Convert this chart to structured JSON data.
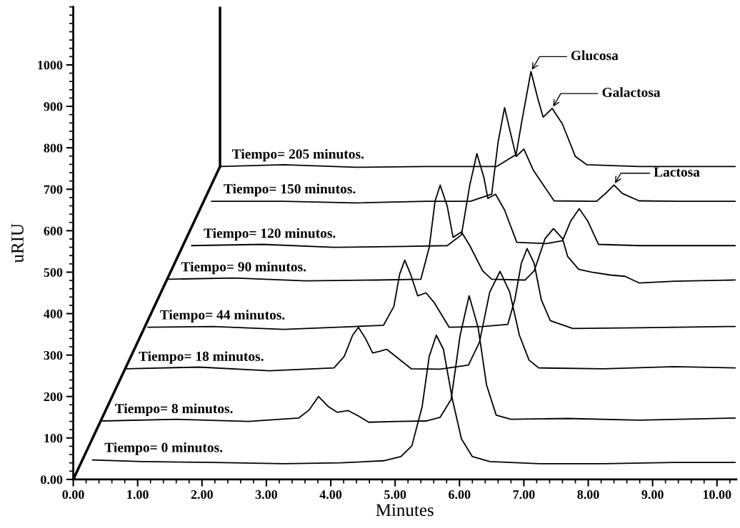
{
  "chart_data": {
    "type": "line",
    "xlabel": "Minutes",
    "ylabel": "uRIU",
    "xlim": [
      0,
      10.3
    ],
    "ylim": [
      0,
      1140
    ],
    "xticks": [
      {
        "value": 0,
        "label": "0.00"
      },
      {
        "value": 1,
        "label": "1.00"
      },
      {
        "value": 2,
        "label": "2.00"
      },
      {
        "value": 3,
        "label": "3.00"
      },
      {
        "value": 4,
        "label": "4.00"
      },
      {
        "value": 5,
        "label": "5.00"
      },
      {
        "value": 6,
        "label": "6.00"
      },
      {
        "value": 7,
        "label": "7.00"
      },
      {
        "value": 8,
        "label": "8.00"
      },
      {
        "value": 9,
        "label": "9.00"
      },
      {
        "value": 10,
        "label": "10.00"
      }
    ],
    "yticks": [
      {
        "value": 0,
        "label": "0.00"
      },
      100,
      200,
      300,
      400,
      500,
      600,
      700,
      800,
      900,
      1000
    ],
    "grid": false,
    "legend": false,
    "marker": "none",
    "line_style": "solid",
    "series": [
      {
        "name": "Tiempo= 0 minutos.",
        "color": "#000000",
        "x": [
          0.3,
          1.07,
          2.17,
          3.27,
          4.16,
          4.82,
          5.09,
          5.26,
          5.42,
          5.53,
          5.64,
          5.75,
          5.89,
          6.03,
          6.2,
          6.47,
          7.24,
          8.24,
          9.34,
          10.28
        ],
        "values": [
          47,
          43,
          41,
          38,
          40,
          45,
          55,
          81,
          176,
          297,
          348,
          314,
          193,
          98,
          55,
          43,
          38,
          38,
          41,
          41
        ]
      },
      {
        "name": "Tiempo= 8 minutos.",
        "color": "#000000",
        "x": [
          0.46,
          1.62,
          2.72,
          3.5,
          3.66,
          3.81,
          3.96,
          4.1,
          4.27,
          4.43,
          4.59,
          5.04,
          5.48,
          5.7,
          5.87,
          6.01,
          6.15,
          6.29,
          6.42,
          6.57,
          6.8,
          7.68,
          8.79,
          10.28
        ],
        "values": [
          141,
          145,
          140,
          148,
          167,
          200,
          176,
          162,
          166,
          153,
          138,
          140,
          141,
          150,
          193,
          348,
          443,
          366,
          228,
          155,
          145,
          147,
          143,
          148
        ]
      },
      {
        "name": "Tiempo= 18 minutos.",
        "color": "#000000",
        "x": [
          0.83,
          1.95,
          3.05,
          4.05,
          4.21,
          4.34,
          4.43,
          4.54,
          4.65,
          4.76,
          4.87,
          5.04,
          5.25,
          5.7,
          6.14,
          6.31,
          6.47,
          6.63,
          6.78,
          6.93,
          7.08,
          7.23,
          8.24,
          9.34,
          10.28
        ],
        "values": [
          267,
          271,
          262,
          269,
          297,
          348,
          367,
          340,
          305,
          309,
          314,
          293,
          267,
          266,
          276,
          331,
          452,
          502,
          452,
          348,
          288,
          269,
          267,
          272,
          269
        ]
      },
      {
        "name": "Tiempo= 44 minutos.",
        "color": "#000000",
        "x": [
          1.16,
          2.17,
          3.27,
          4.38,
          4.82,
          4.98,
          5.07,
          5.15,
          5.24,
          5.35,
          5.48,
          5.61,
          5.84,
          6.36,
          6.75,
          6.86,
          6.96,
          7.05,
          7.16,
          7.27,
          7.41,
          7.76,
          8.79,
          10.28
        ],
        "values": [
          367,
          369,
          362,
          369,
          372,
          417,
          495,
          529,
          495,
          443,
          450,
          426,
          367,
          369,
          374,
          434,
          521,
          557,
          521,
          434,
          383,
          364,
          366,
          369
        ]
      },
      {
        "name": "Tiempo= 90 minutos.",
        "color": "#000000",
        "x": [
          1.49,
          2.5,
          3.61,
          4.71,
          5.4,
          5.53,
          5.62,
          5.7,
          5.81,
          5.9,
          6.03,
          6.16,
          6.36,
          6.5,
          7.02,
          7.16,
          7.33,
          7.46,
          7.6,
          7.68,
          7.85,
          8.05,
          8.35,
          8.57,
          8.79,
          9.34,
          10.28
        ],
        "values": [
          483,
          486,
          479,
          481,
          483,
          560,
          671,
          710,
          659,
          584,
          597,
          564,
          503,
          483,
          481,
          503,
          581,
          605,
          581,
          538,
          507,
          500,
          493,
          490,
          474,
          478,
          481
        ]
      },
      {
        "name": "Tiempo= 120 minutos.",
        "color": "#000000",
        "x": [
          1.84,
          2.94,
          4.05,
          5.15,
          5.81,
          6.03,
          6.16,
          6.27,
          6.38,
          6.44,
          6.56,
          6.7,
          6.89,
          7.35,
          7.6,
          7.73,
          7.86,
          7.99,
          8.16,
          8.79,
          10.28
        ],
        "values": [
          564,
          567,
          560,
          562,
          564,
          590,
          710,
          786,
          728,
          678,
          688,
          650,
          572,
          569,
          576,
          624,
          653,
          624,
          567,
          564,
          564
        ]
      },
      {
        "name": "Tiempo= 150 minutos.",
        "color": "#000000",
        "x": [
          2.15,
          3.27,
          4.38,
          5.48,
          6.17,
          6.5,
          6.6,
          6.7,
          6.8,
          6.88,
          7.0,
          7.15,
          7.47,
          8.13,
          8.27,
          8.4,
          8.53,
          8.79,
          9.45,
          10.28
        ],
        "values": [
          671,
          671,
          667,
          671,
          671,
          688,
          814,
          897,
          831,
          779,
          797,
          745,
          672,
          671,
          690,
          710,
          690,
          672,
          671,
          671
        ]
      },
      {
        "name": "Tiempo= 205 minutos.",
        "color": "#000000",
        "x": [
          2.28,
          3.27,
          4.38,
          5.48,
          6.58,
          6.88,
          6.97,
          7.11,
          7.22,
          7.3,
          7.44,
          7.6,
          7.8,
          7.98,
          8.79,
          10.28
        ],
        "values": [
          755,
          759,
          753,
          755,
          755,
          784,
          866,
          984,
          917,
          874,
          895,
          857,
          779,
          759,
          755,
          755
        ]
      }
    ],
    "annotations": [
      {
        "text": "Glucosa",
        "x": 7.11,
        "y": 984
      },
      {
        "text": "Galactosa",
        "x": 7.44,
        "y": 895
      },
      {
        "text": "Lactosa",
        "x": 8.4,
        "y": 710
      }
    ]
  }
}
